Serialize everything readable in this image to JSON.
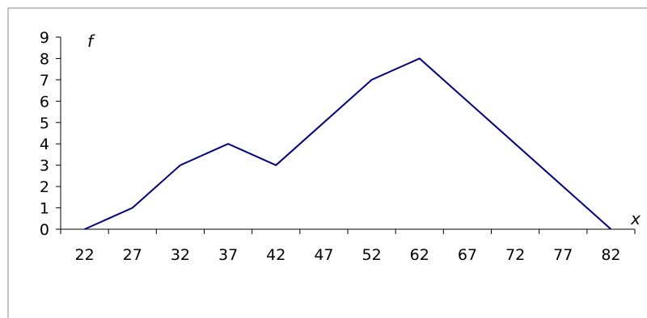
{
  "chart_data": {
    "type": "line",
    "title": "",
    "xlabel": "x",
    "ylabel": "f",
    "categories": [
      "22",
      "27",
      "32",
      "37",
      "42",
      "47",
      "52",
      "62",
      "67",
      "72",
      "77",
      "82"
    ],
    "series": [
      {
        "points": [
          {
            "x": "22",
            "y": 0
          },
          {
            "x": "27",
            "y": 1
          },
          {
            "x": "32",
            "y": 3
          },
          {
            "x": "37",
            "y": 4
          },
          {
            "x": "42",
            "y": 3
          },
          {
            "x": "52",
            "y": 7
          },
          {
            "x": "62",
            "y": 8
          },
          {
            "x": "82",
            "y": 0
          }
        ]
      }
    ],
    "yticks": [
      0,
      1,
      2,
      3,
      4,
      5,
      6,
      7,
      8,
      9
    ],
    "ylim": [
      0,
      9
    ],
    "grid": false,
    "legend": "none",
    "line_color": "#000080"
  }
}
